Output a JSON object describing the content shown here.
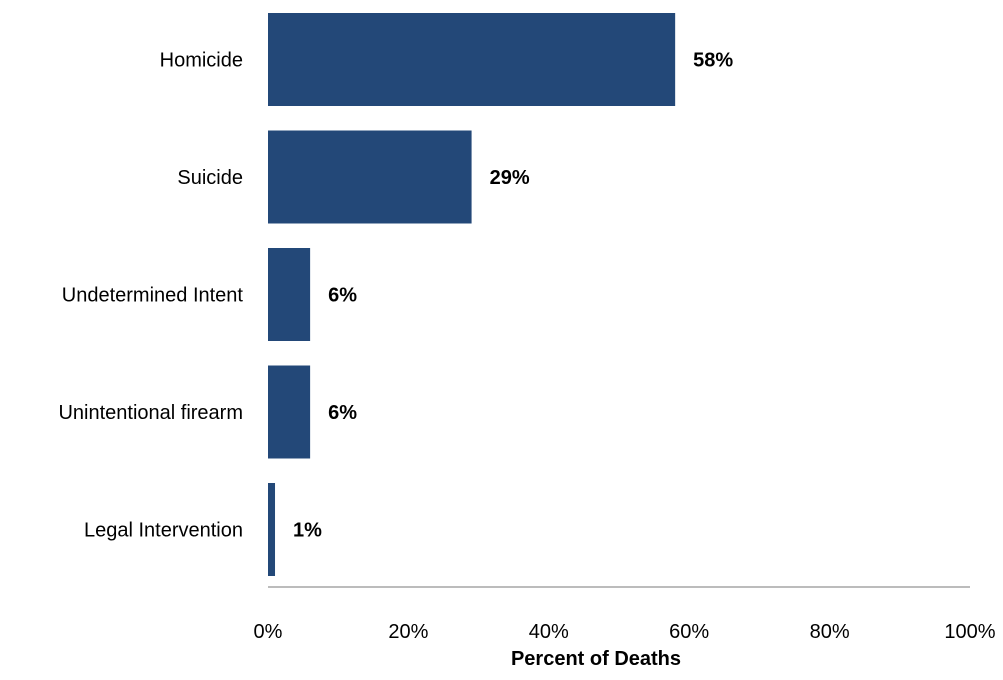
{
  "chart_data": {
    "type": "bar",
    "orientation": "horizontal",
    "categories": [
      "Homicide",
      "Suicide",
      "Undetermined Intent",
      "Unintentional firearm",
      "Legal Intervention"
    ],
    "values": [
      58,
      29,
      6,
      6,
      1
    ],
    "value_labels": [
      "58%",
      "29%",
      "6%",
      "6%",
      "1%"
    ],
    "title": "",
    "xlabel": "Percent of Deaths",
    "ylabel": "",
    "xlim": [
      0,
      100
    ],
    "x_ticks": [
      0,
      20,
      40,
      60,
      80,
      100
    ],
    "x_tick_labels": [
      "0%",
      "20%",
      "40%",
      "60%",
      "80%",
      "100%"
    ],
    "grid": false,
    "legend": "none",
    "bar_color": "#234878",
    "axis_color": "#a6a6a6",
    "text_color": "#000000"
  }
}
